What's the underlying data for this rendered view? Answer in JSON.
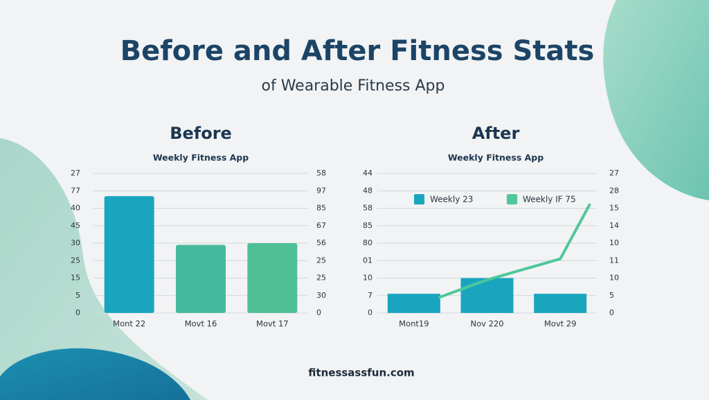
{
  "title": "Before and After Fitness Stats",
  "subtitle": "of Wearable Fitness App",
  "footer": "fitnessassfun.com",
  "chart_data": [
    {
      "type": "bar",
      "title": "Before",
      "subtitle": "Weekly Fitness App",
      "categories": [
        "Mont 22",
        "Movt 16",
        "Movt 17"
      ],
      "values": [
        6.7,
        3.9,
        4.0
      ],
      "colors": [
        "#1aa5bf",
        "#45b99b",
        "#4fbf96"
      ],
      "ylim": [
        0,
        8
      ],
      "yticks": [
        {
          "value": 0,
          "label": "0"
        },
        {
          "value": 1,
          "label": "5"
        },
        {
          "value": 2,
          "label": "15"
        },
        {
          "value": 3,
          "label": "25"
        },
        {
          "value": 4,
          "label": "30"
        },
        {
          "value": 5,
          "label": "45"
        },
        {
          "value": 6,
          "label": "40"
        },
        {
          "value": 7,
          "label": "77"
        },
        {
          "value": 8,
          "label": "27"
        }
      ],
      "y2lim": [
        0,
        8
      ],
      "y2ticks": [
        {
          "value": 0,
          "label": "0"
        },
        {
          "value": 1,
          "label": "30"
        },
        {
          "value": 2,
          "label": "25"
        },
        {
          "value": 3,
          "label": "25"
        },
        {
          "value": 4,
          "label": "56"
        },
        {
          "value": 5,
          "label": "67"
        },
        {
          "value": 6,
          "label": "85"
        },
        {
          "value": 7,
          "label": "97"
        },
        {
          "value": 8,
          "label": "58"
        }
      ],
      "grid": true
    },
    {
      "type": "bar-line",
      "title": "After",
      "subtitle": "Weekly Fitness App",
      "categories": [
        "Mont19",
        "Nov 220",
        "Movt 29"
      ],
      "series": [
        {
          "name": "Weekly 23",
          "color": "#1aa5bf",
          "values": [
            1.1,
            2.0,
            1.1
          ]
        },
        {
          "name": "Weekly IF 75",
          "color": "#4fc79a",
          "axis": "y2",
          "x": [
            0.35,
            1.0,
            2.0,
            2.4
          ],
          "values": [
            0.9,
            1.9,
            3.1,
            6.2
          ]
        }
      ],
      "ylim": [
        0,
        8
      ],
      "yticks": [
        {
          "value": 0,
          "label": "0"
        },
        {
          "value": 1,
          "label": "7"
        },
        {
          "value": 2,
          "label": "10"
        },
        {
          "value": 3,
          "label": "01"
        },
        {
          "value": 4,
          "label": "80"
        },
        {
          "value": 5,
          "label": "85"
        },
        {
          "value": 6,
          "label": "58"
        },
        {
          "value": 7,
          "label": "48"
        },
        {
          "value": 8,
          "label": "44"
        }
      ],
      "y2lim": [
        0,
        8
      ],
      "y2ticks": [
        {
          "value": 0,
          "label": "0"
        },
        {
          "value": 1,
          "label": "5"
        },
        {
          "value": 2,
          "label": "10"
        },
        {
          "value": 3,
          "label": "11"
        },
        {
          "value": 4,
          "label": "10"
        },
        {
          "value": 5,
          "label": "14"
        },
        {
          "value": 6,
          "label": "15"
        },
        {
          "value": 7,
          "label": "28"
        },
        {
          "value": 8,
          "label": "27"
        }
      ],
      "grid": true
    }
  ]
}
